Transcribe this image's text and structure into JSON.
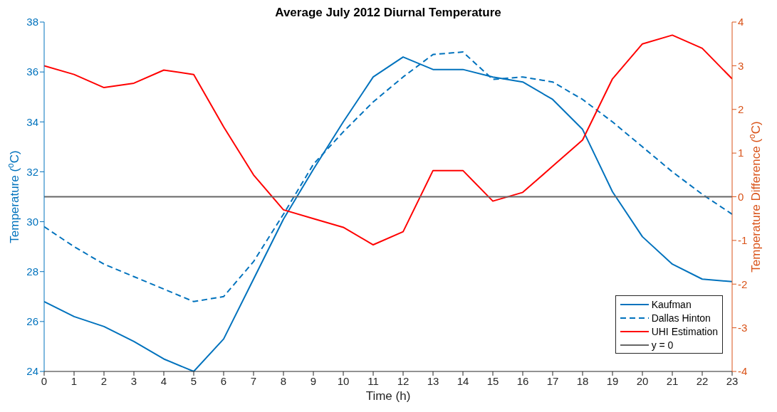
{
  "chart_data": {
    "type": "line",
    "title": "Average July 2012 Diurnal Temperature",
    "xlabel": "Time (h)",
    "ylabel": "Temperature ($^{o}$C)",
    "y2label": "Temperature Difference ($^{o}$C)",
    "x": [
      0,
      1,
      2,
      3,
      4,
      5,
      6,
      7,
      8,
      9,
      10,
      11,
      12,
      13,
      14,
      15,
      16,
      17,
      18,
      19,
      20,
      21,
      22,
      23
    ],
    "series": [
      {
        "name": "Kaufman",
        "color": "#0072bd",
        "line_style": "solid",
        "values": [
          26.8,
          26.2,
          25.8,
          25.2,
          24.5,
          24.0,
          25.3,
          27.7,
          30.1,
          32.1,
          34.0,
          35.8,
          36.6,
          36.1,
          36.1,
          35.8,
          35.6,
          34.9,
          33.7,
          31.2,
          29.4,
          28.3,
          27.7,
          27.6
        ]
      },
      {
        "name": "Dallas Hinton",
        "color": "#0072bd",
        "line_style": "dashed",
        "values": [
          29.8,
          29.0,
          28.3,
          27.8,
          27.3,
          26.8,
          27.0,
          28.4,
          30.3,
          32.3,
          33.6,
          34.8,
          35.8,
          36.7,
          36.8,
          35.7,
          35.8,
          35.6,
          34.9,
          34.0,
          33.0,
          32.0,
          31.1,
          30.3
        ]
      },
      {
        "name": "UHI Estimation",
        "color": "#ff0000",
        "line_style": "solid",
        "axis": "y2",
        "values": [
          3.0,
          2.8,
          2.5,
          2.6,
          2.9,
          2.8,
          1.6,
          0.5,
          -0.3,
          -0.5,
          -0.7,
          -1.1,
          -0.8,
          0.6,
          0.6,
          -0.1,
          0.1,
          0.7,
          1.3,
          2.7,
          3.5,
          3.7,
          3.4,
          2.7
        ]
      },
      {
        "name": "y = 0",
        "color": "#666666",
        "line_style": "solid",
        "axis": "y2",
        "values": [
          0,
          0,
          0,
          0,
          0,
          0,
          0,
          0,
          0,
          0,
          0,
          0,
          0,
          0,
          0,
          0,
          0,
          0,
          0,
          0,
          0,
          0,
          0,
          0
        ]
      }
    ],
    "xlim": [
      0,
      23
    ],
    "xticks": [
      0,
      1,
      2,
      3,
      4,
      5,
      6,
      7,
      8,
      9,
      10,
      11,
      12,
      13,
      14,
      15,
      16,
      17,
      18,
      19,
      20,
      21,
      22,
      23
    ],
    "ylim": [
      24,
      38
    ],
    "yticks": [
      24,
      26,
      28,
      30,
      32,
      34,
      36,
      38
    ],
    "y2lim": [
      -4,
      4
    ],
    "y2ticks": [
      -4,
      -3,
      -2,
      -1,
      0,
      1,
      2,
      3,
      4
    ],
    "grid": false,
    "legend": "bottom right",
    "marker": "none"
  }
}
